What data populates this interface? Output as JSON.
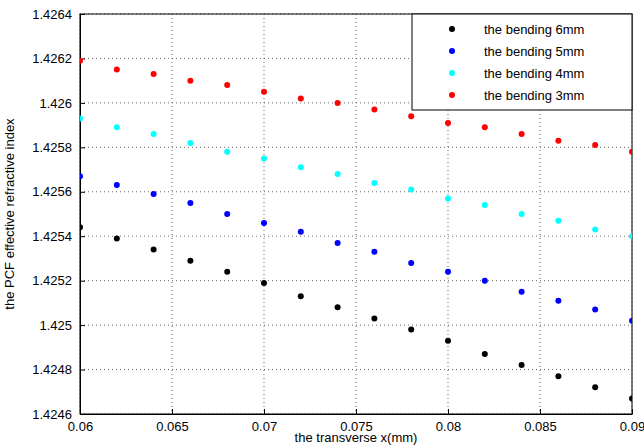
{
  "chart_data": {
    "type": "scatter",
    "x_label": "the transverse x(mm)",
    "y_label": "the PCF effective refractive index",
    "x": [
      0.06,
      0.062,
      0.064,
      0.066,
      0.068,
      0.07,
      0.072,
      0.074,
      0.076,
      0.078,
      0.08,
      0.082,
      0.084,
      0.086,
      0.088,
      0.09
    ],
    "series": [
      {
        "name": "the bending 6mm",
        "color": "#000000",
        "marker": "circle",
        "values": [
          1.42544,
          1.42539,
          1.42534,
          1.42529,
          1.42524,
          1.42519,
          1.42513,
          1.42508,
          1.42503,
          1.42498,
          1.42493,
          1.42487,
          1.42482,
          1.42477,
          1.42472,
          1.42467
        ]
      },
      {
        "name": "the bending 5mm",
        "color": "#0000ff",
        "marker": "circle",
        "values": [
          1.42567,
          1.42563,
          1.42559,
          1.42555,
          1.4255,
          1.42546,
          1.42542,
          1.42537,
          1.42533,
          1.42528,
          1.42524,
          1.4252,
          1.42515,
          1.42511,
          1.42507,
          1.42502
        ]
      },
      {
        "name": "the bending 4mm",
        "color": "#00ffff",
        "marker": "circle",
        "values": [
          1.42593,
          1.42589,
          1.42586,
          1.42582,
          1.42578,
          1.42575,
          1.42571,
          1.42568,
          1.42564,
          1.42561,
          1.42557,
          1.42554,
          1.4255,
          1.42547,
          1.42543,
          1.4254
        ]
      },
      {
        "name": "the bending 3mm",
        "color": "#ff0000",
        "marker": "circle",
        "values": [
          1.42619,
          1.42615,
          1.42613,
          1.4261,
          1.42608,
          1.42605,
          1.42602,
          1.426,
          1.42597,
          1.42594,
          1.42591,
          1.42589,
          1.42586,
          1.42583,
          1.42581,
          1.42578
        ]
      }
    ],
    "xlim": [
      0.06,
      0.09
    ],
    "xticks": [
      0.06,
      0.065,
      0.07,
      0.075,
      0.08,
      0.085,
      0.09
    ],
    "ylim": [
      1.4246,
      1.4264
    ],
    "yticks": [
      1.4246,
      1.4248,
      1.425,
      1.4252,
      1.4254,
      1.4256,
      1.4258,
      1.426,
      1.4262,
      1.4264
    ],
    "grid": true,
    "legend": "upper right"
  }
}
